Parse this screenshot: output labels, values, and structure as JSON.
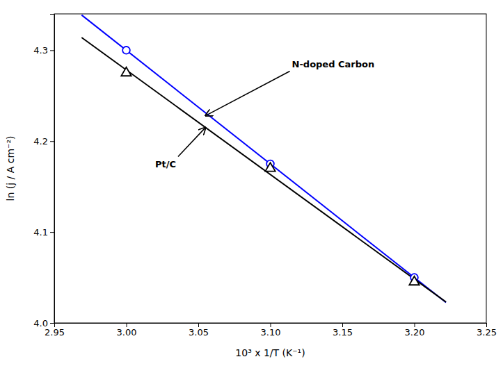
{
  "chart_data": {
    "type": "scatter",
    "x_label": "10³ x 1/T (K⁻¹)",
    "y_label": "ln (j / A cm⁻²)",
    "series": [
      {
        "type": "line",
        "color": "#0000FF",
        "line_style": "solid",
        "x": [
          2.969,
          3.222
        ],
        "values": [
          4.33875,
          4.0225
        ]
      },
      {
        "type": "line",
        "color": "#000000",
        "line_style": "solid",
        "x": [
          2.969,
          3.222
        ],
        "values": [
          4.3139833,
          4.0230333
        ]
      },
      {
        "type": "scatter",
        "color": "#0000FF",
        "marker": "circle",
        "x": [
          3.0,
          3.1,
          3.2
        ],
        "values": [
          4.3,
          4.175,
          4.05
        ]
      },
      {
        "type": "scatter",
        "color": "#000000",
        "marker": "triangle",
        "x": [
          3.0,
          3.1,
          3.2
        ],
        "values": [
          4.275,
          4.17,
          4.045
        ]
      }
    ],
    "xlim": [
      2.95,
      3.25
    ],
    "ylim": [
      4.0,
      4.34
    ],
    "xticks": [
      2.95,
      {
        "value": 3.0,
        "label": "3.00"
      },
      3.05,
      {
        "value": 3.1,
        "label": "3.10"
      },
      3.15,
      {
        "value": 3.2,
        "label": "3.20"
      },
      3.25
    ],
    "yticks": [
      {
        "value": 4.0,
        "label": "4.0"
      },
      4.1,
      4.2,
      4.3
    ],
    "grid": false,
    "annotations": [
      {
        "text": "N-doped Carbon",
        "x": 3.055,
        "y": 4.228,
        "text_x": 3.115,
        "text_y": 4.285
      },
      {
        "text": "Pt/C",
        "x": 3.055,
        "y": 4.215,
        "text_x": 3.02,
        "text_y": 4.175
      }
    ]
  }
}
